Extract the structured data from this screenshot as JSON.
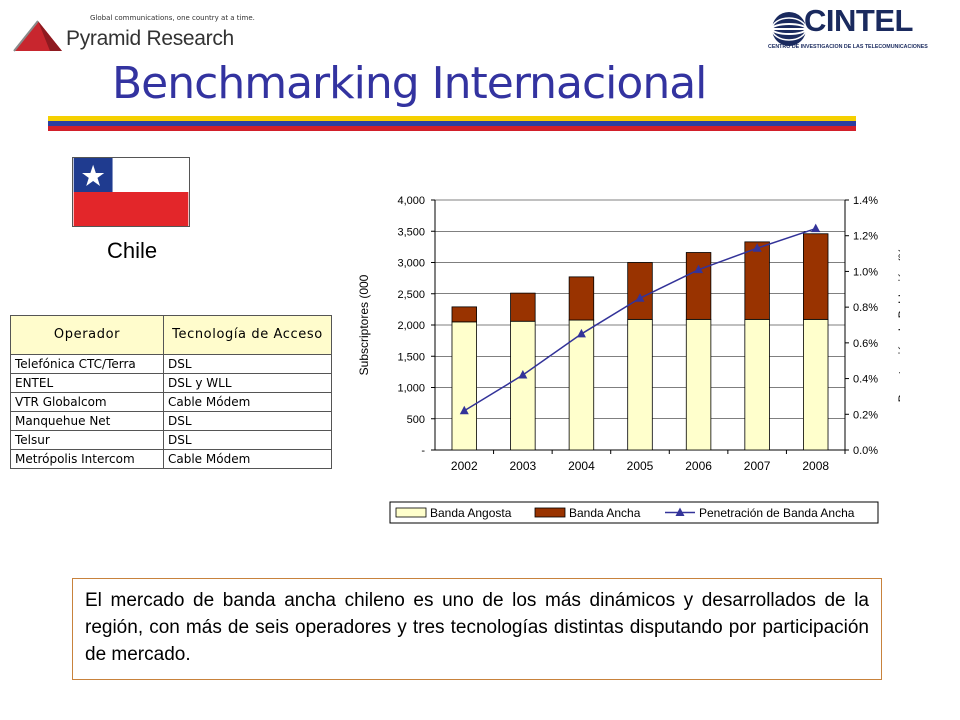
{
  "header": {
    "pyramid_tagline": "Global communications, one country at a time.",
    "pyramid_name": "Pyramid Research",
    "cintel_name": "CINTEL",
    "cintel_subtitle": "CENTRO DE INVESTIGACION DE LAS TELECOMUNICACIONES"
  },
  "title": "Benchmarking Internacional",
  "band_colors": [
    "#f5d000",
    "#2a3ea0",
    "#d21f2a"
  ],
  "country": {
    "name": "Chile",
    "flag_colors": {
      "blue": "#1f3b8f",
      "white": "#ffffff",
      "red": "#e3262a"
    }
  },
  "operators_table": {
    "headers": [
      "Operador",
      "Tecnología de Acceso"
    ],
    "rows": [
      [
        "Telefónica CTC/Terra",
        "DSL"
      ],
      [
        "ENTEL",
        "DSL y WLL"
      ],
      [
        "VTR Globalcom",
        "Cable Módem"
      ],
      [
        "Manquehue Net",
        "DSL"
      ],
      [
        "Telsur",
        "DSL"
      ],
      [
        "Metrópolis Intercom",
        "Cable Módem"
      ]
    ]
  },
  "chart_data": {
    "type": "bar",
    "stacked": true,
    "categories": [
      "2002",
      "2003",
      "2004",
      "2005",
      "2006",
      "2007",
      "2008"
    ],
    "series": [
      {
        "name": "Banda Angosta",
        "type": "bar",
        "axis": "left",
        "color": "#ffffcc",
        "values": [
          2050,
          2060,
          2080,
          2090,
          2090,
          2090,
          2090
        ]
      },
      {
        "name": "Banda Ancha",
        "type": "bar",
        "axis": "left",
        "color": "#993300",
        "values": [
          240,
          450,
          690,
          910,
          1070,
          1240,
          1370
        ]
      },
      {
        "name": "Penetración de Banda Ancha",
        "type": "line",
        "axis": "right",
        "color": "#333399",
        "marker": "triangle",
        "values": [
          0.22,
          0.42,
          0.65,
          0.85,
          1.01,
          1.13,
          1.24
        ]
      }
    ],
    "ylabel": "Subscriptores (000",
    "y2label": "Penetración de Población (%",
    "ylim": [
      0,
      4000
    ],
    "y2lim": [
      0,
      1.4
    ],
    "yticks": [
      "-",
      "500",
      "1,000",
      "1,500",
      "2,000",
      "2,500",
      "3,000",
      "3,500",
      "4,000"
    ],
    "y2ticks": [
      "0.0%",
      "0.2%",
      "0.4%",
      "0.6%",
      "0.8%",
      "1.0%",
      "1.2%",
      "1.4%"
    ],
    "grid": true,
    "legend_position": "bottom"
  },
  "note": "El mercado de banda ancha chileno es uno de los más dinámicos y desarrollados de la región, con más de seis operadores y tres tecnologías distintas disputando por participación de mercado."
}
